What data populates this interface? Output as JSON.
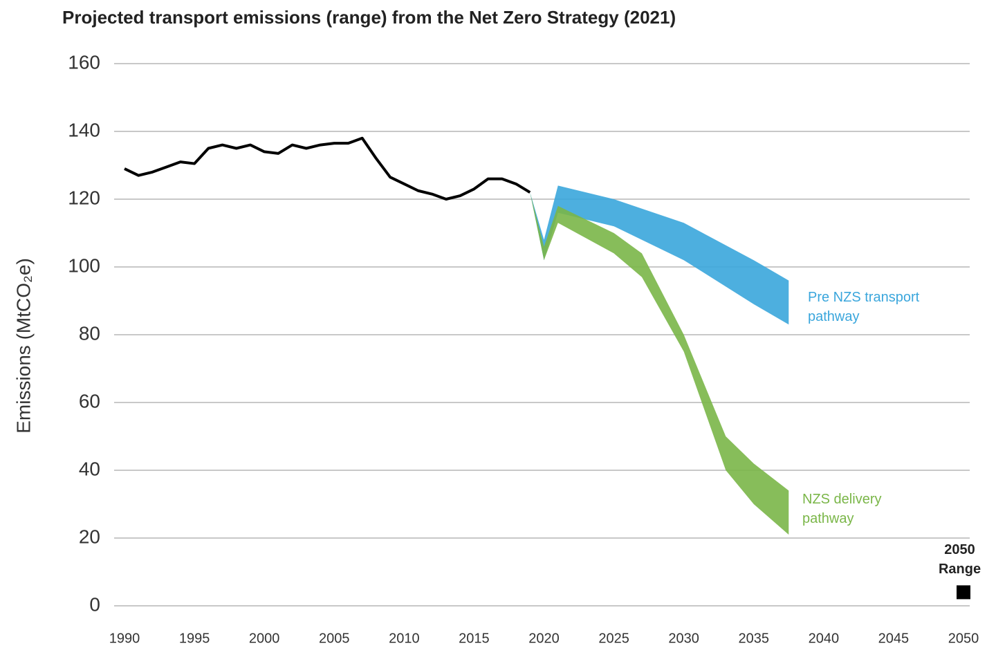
{
  "chart_data": {
    "type": "line",
    "title": "Projected transport emissions (range) from the Net Zero Strategy (2021)",
    "y_label": "Emissions (MtCO₂e)",
    "xlim": [
      1990,
      2050
    ],
    "xticks": [
      1990,
      1995,
      2000,
      2005,
      2010,
      2015,
      2020,
      2025,
      2030,
      2035,
      2040,
      2045,
      2050
    ],
    "ylim": [
      0,
      160
    ],
    "yticks": [
      0,
      20,
      40,
      60,
      80,
      100,
      120,
      140,
      160
    ],
    "grid": true,
    "series": [
      {
        "type": "line",
        "color": "#000000",
        "x": [
          1990,
          1991,
          1992,
          1993,
          1994,
          1995,
          1996,
          1997,
          1998,
          1999,
          2000,
          2001,
          2002,
          2003,
          2004,
          2005,
          2006,
          2007,
          2008,
          2009,
          2010,
          2011,
          2012,
          2013,
          2014,
          2015,
          2016,
          2017,
          2018,
          2019
        ],
        "values": [
          129,
          127,
          128,
          129.5,
          131,
          130.5,
          135,
          136,
          135,
          136,
          134,
          133.5,
          136,
          135,
          136,
          136.5,
          136.5,
          138,
          132,
          126.5,
          124.5,
          122.5,
          121.5,
          120,
          121,
          123,
          126,
          126,
          124.5,
          122
        ]
      },
      {
        "type": "range",
        "name": "Pre NZS transport pathway",
        "color": "#3aa6dc",
        "x": [
          2019,
          2020,
          2021,
          2025,
          2030,
          2035,
          2037.5
        ],
        "high": [
          122,
          108,
          124,
          120,
          113,
          102,
          96
        ],
        "low": [
          122,
          102,
          116,
          112,
          102,
          89,
          83
        ]
      },
      {
        "type": "range",
        "name": "NZS delivery pathway",
        "color": "#7ab648",
        "x": [
          2019,
          2020,
          2021,
          2025,
          2027,
          2030,
          2033,
          2035,
          2037.5
        ],
        "high": [
          122,
          106,
          118,
          110,
          104,
          80,
          50,
          42,
          34
        ],
        "low": [
          122,
          102,
          113,
          104,
          97,
          75,
          40,
          30,
          21
        ]
      },
      {
        "type": "marker",
        "name": "2050 Range",
        "color": "#000000",
        "x": [
          2050
        ],
        "values": [
          4
        ]
      }
    ]
  }
}
